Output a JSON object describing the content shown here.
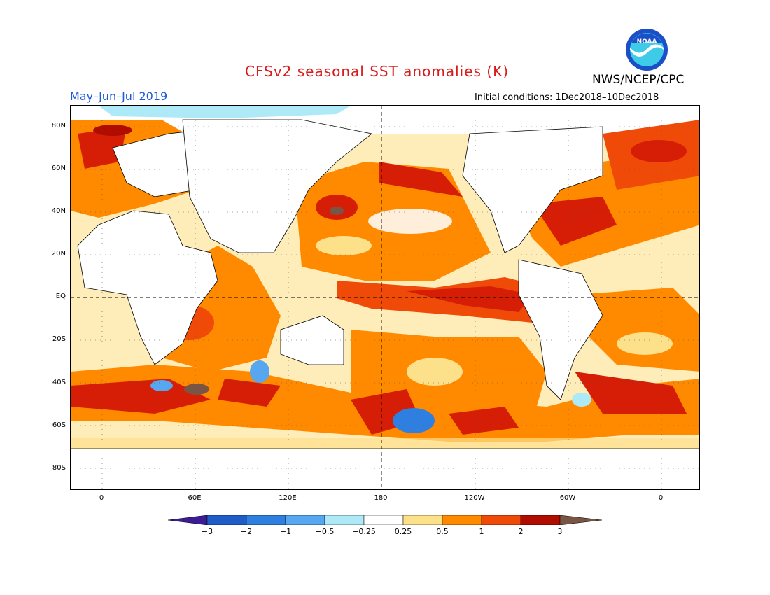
{
  "title": "CFSv2 seasonal SST anomalies (K)",
  "season": "May–Jun–Jul 2019",
  "agency": "NWS/NCEP/CPC",
  "initial_conditions": "Initial conditions: 1Dec2018–10Dec2018",
  "logo": {
    "text": "NOAA",
    "icon": "noaa-logo-icon"
  },
  "lat_labels": [
    "80N",
    "60N",
    "40N",
    "20N",
    "EQ",
    "20S",
    "40S",
    "60S",
    "80S"
  ],
  "lon_labels": [
    "0",
    "60E",
    "120E",
    "180",
    "120W",
    "60W",
    "0"
  ],
  "colorbar": {
    "labels": [
      "−3",
      "−2",
      "−1",
      "−0.5",
      "−0.25",
      "0.25",
      "0.5",
      "1",
      "2",
      "3"
    ],
    "colors": [
      "#3c1c96",
      "#1f5cc8",
      "#2e7fe0",
      "#57a6f0",
      "#aee9f7",
      "#ffffff",
      "#fde08a",
      "#ff8a00",
      "#f04a08",
      "#d61e06",
      "#b00d00",
      "#7a5544"
    ]
  },
  "colors": {
    "title": "#d81b1b",
    "season": "#1e5bd8",
    "warm_strong": "#d61e06",
    "warm": "#f04a08",
    "warm_light": "#ff8a00",
    "warm_pale": "#fde08a",
    "cool_pale": "#aee9f7",
    "cool": "#2e7fe0"
  }
}
